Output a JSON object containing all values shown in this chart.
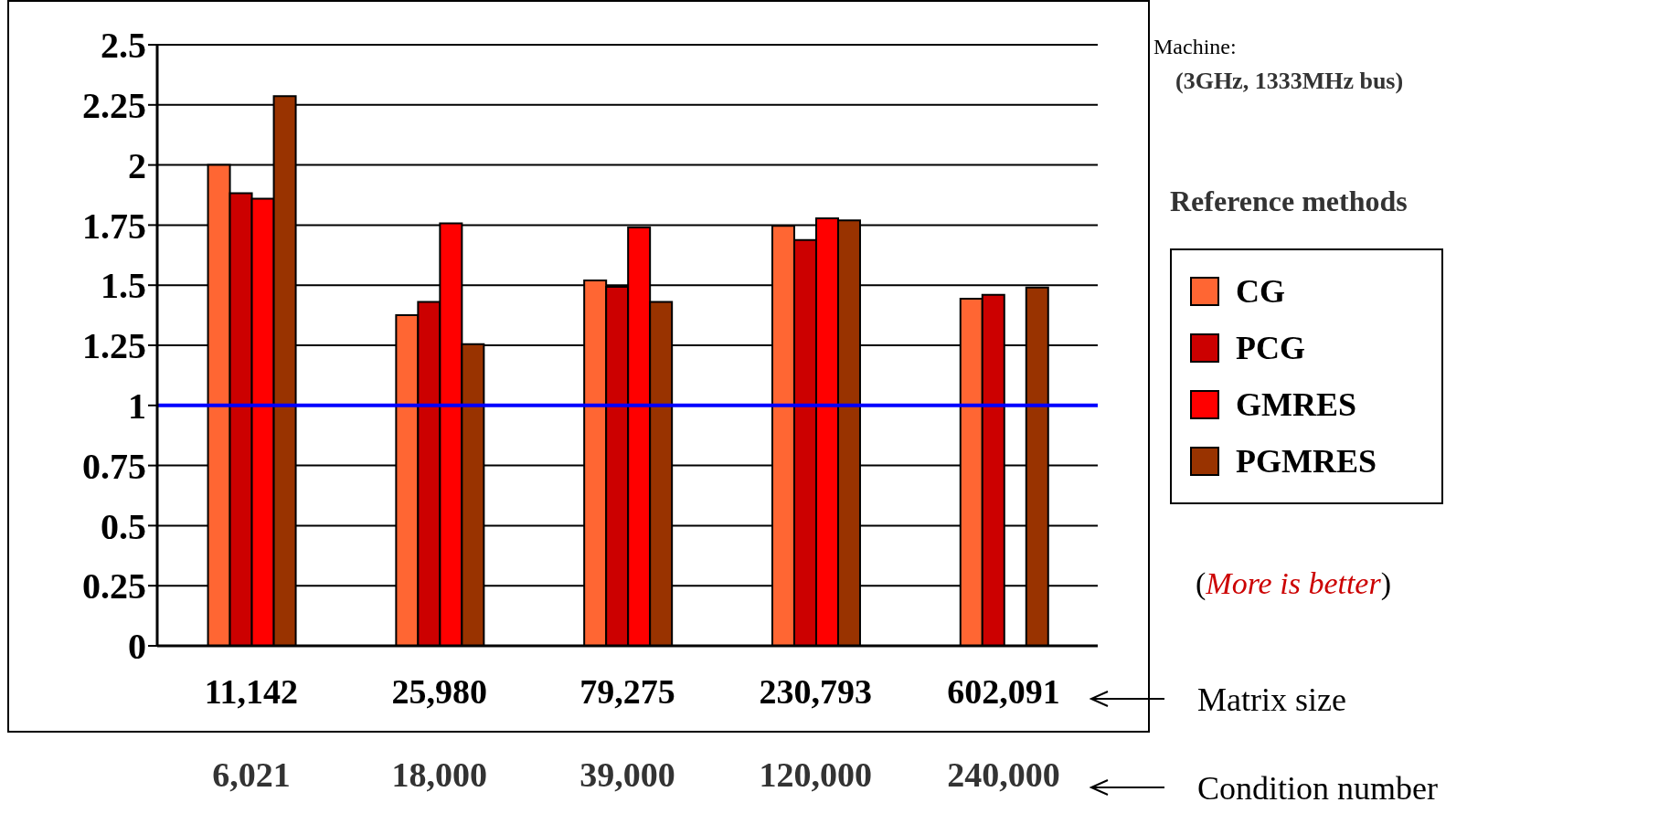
{
  "chart_data": {
    "type": "bar",
    "categories": [
      "11,142",
      "25,980",
      "79,275",
      "230,793",
      "602,091"
    ],
    "series": [
      {
        "name": "CG",
        "color": "#ff6633",
        "values": [
          2.0,
          1.375,
          1.52,
          1.747,
          1.444
        ]
      },
      {
        "name": "PCG",
        "color": "#cc0000",
        "values": [
          1.883,
          1.43,
          1.493,
          1.688,
          1.46
        ]
      },
      {
        "name": "GMRES",
        "color": "#ff0000",
        "values": [
          1.86,
          1.757,
          1.74,
          1.778,
          null
        ]
      },
      {
        "name": "PGMRES",
        "color": "#993300",
        "values": [
          2.286,
          1.255,
          1.43,
          1.77,
          1.49
        ]
      }
    ],
    "ylim": [
      0,
      2.5
    ],
    "yticks": [
      0,
      0.25,
      0.5,
      0.75,
      1,
      1.25,
      1.5,
      1.75,
      2,
      2.25,
      2.5
    ],
    "grid": "y",
    "legend": "right",
    "legend_title": "Reference methods",
    "ref_lines": [
      {
        "axis": "y",
        "value": 1,
        "color": "#0000ff"
      }
    ],
    "annotations": [
      "6,021",
      "18,000",
      "39,000",
      "120,000",
      "240,000",
      "Machine:",
      "(3GHz, 1333MHz bus)",
      "(More is better)",
      "Matrix size",
      "Condition number"
    ]
  }
}
